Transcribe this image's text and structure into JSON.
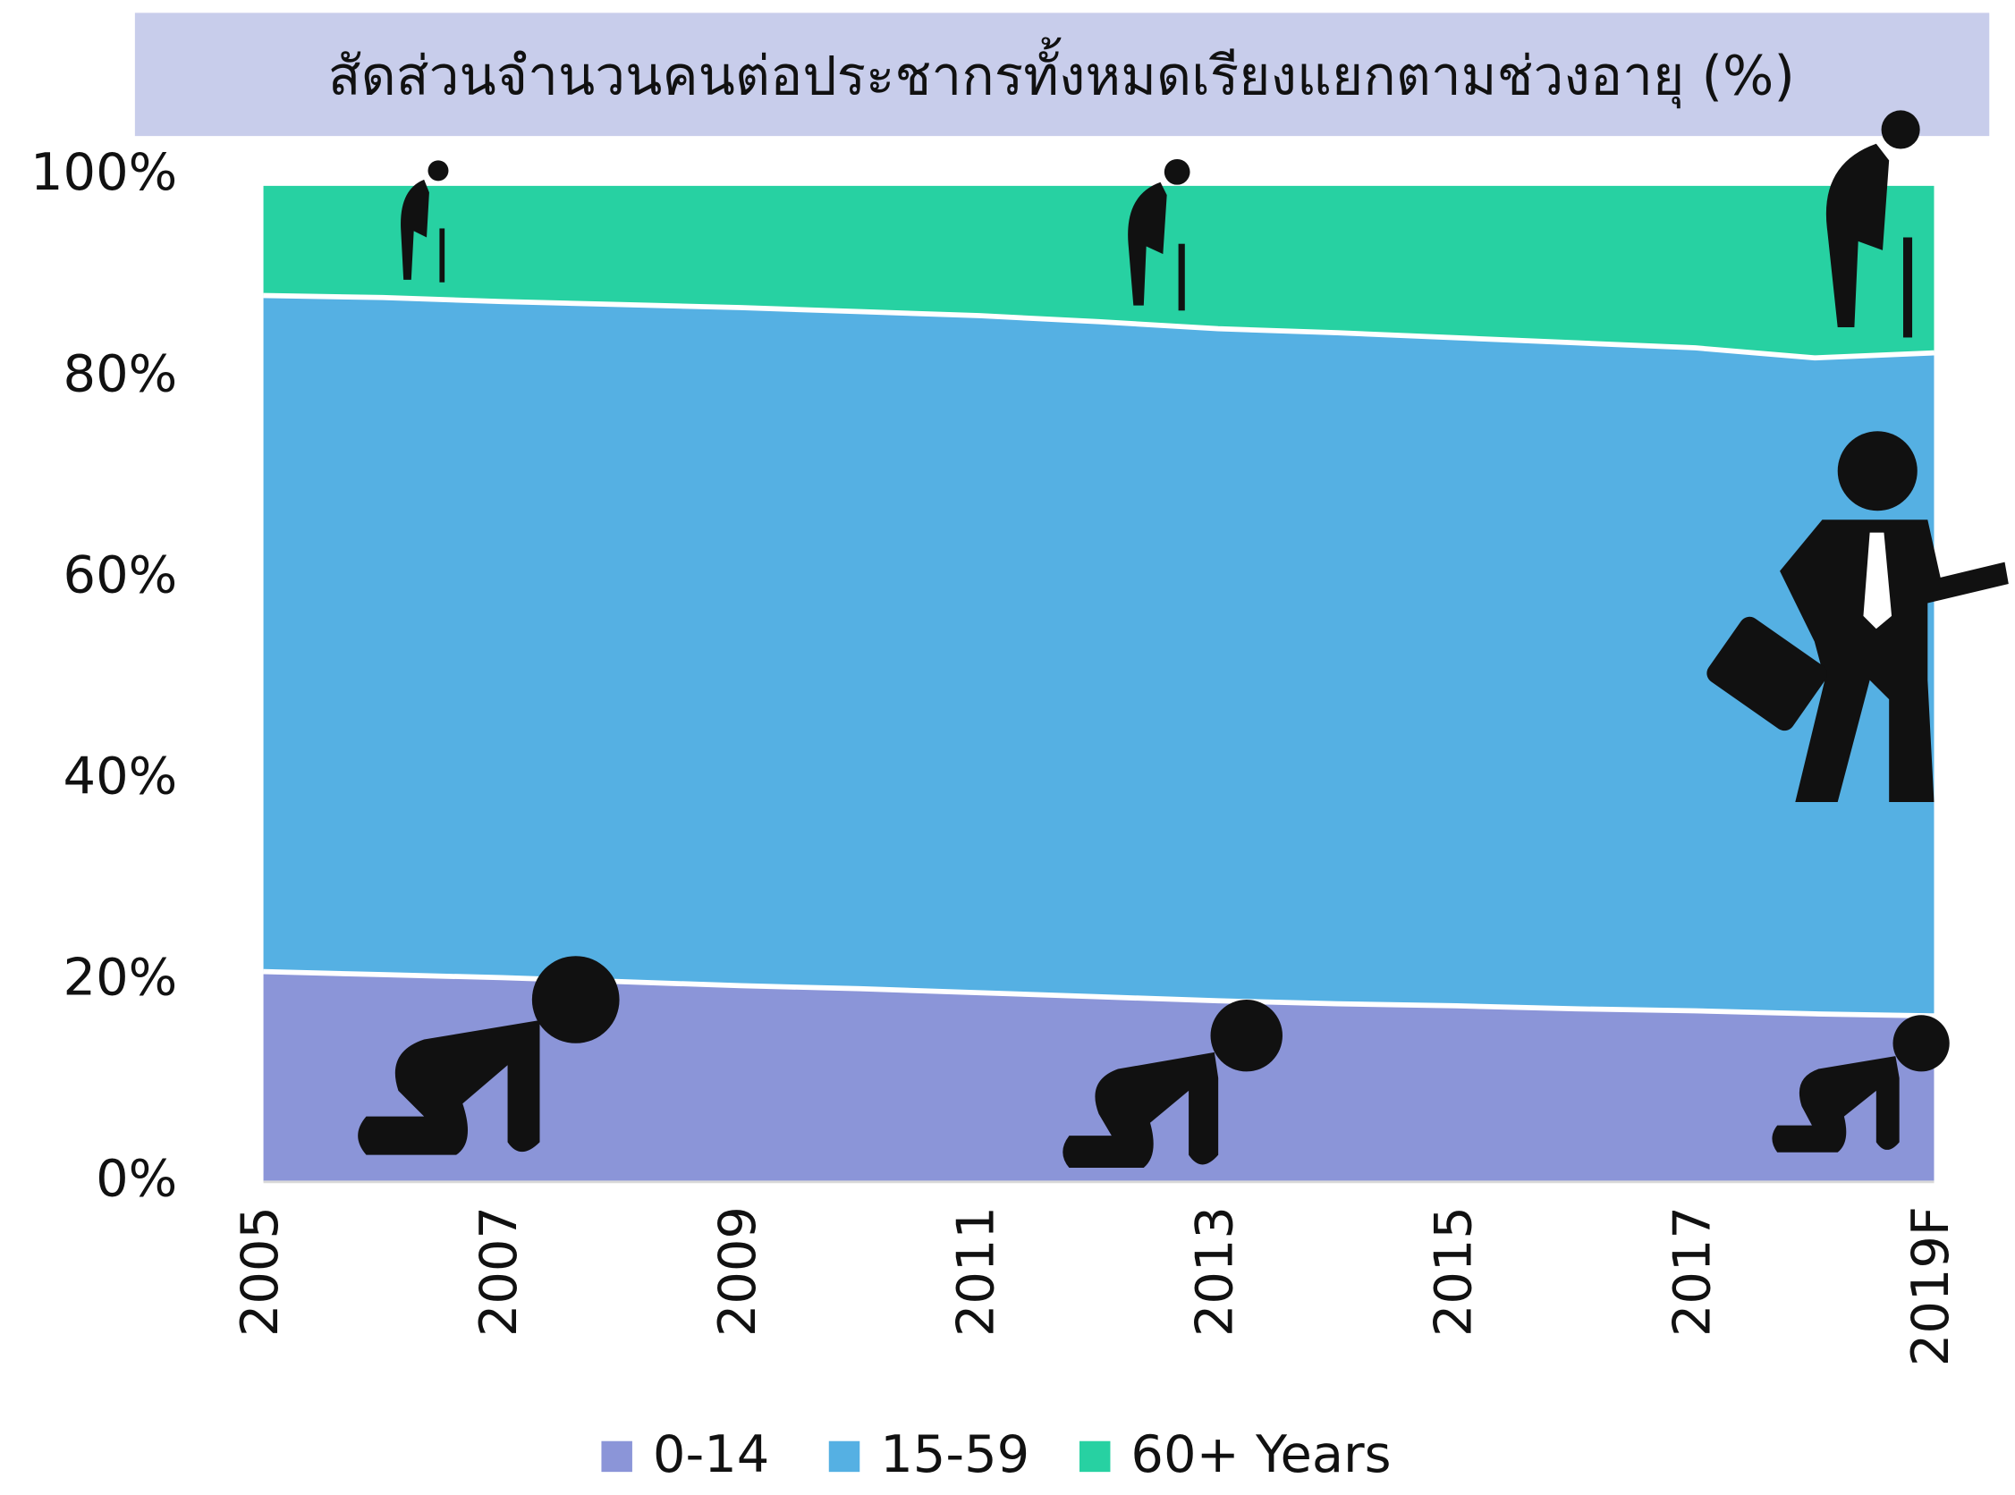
{
  "chart_data": {
    "type": "stacked_area",
    "title": "สัดส่วนจำนวนคนต่อประชากรทั้งหมดเรียงแยกตามช่วงอายุ (%)",
    "categories": [
      "2005",
      null,
      "2007",
      null,
      "2009",
      null,
      "2011",
      null,
      "2013",
      null,
      "2015",
      null,
      "2017",
      null,
      "2019F"
    ],
    "series": [
      {
        "name": "0-14",
        "color": "#8b95d8",
        "values": [
          20.9,
          20.6,
          20.3,
          19.9,
          19.5,
          19.2,
          18.8,
          18.4,
          18.0,
          17.7,
          17.5,
          17.2,
          17.0,
          16.7,
          16.5
        ]
      },
      {
        "name": "15-59",
        "color": "#55b0e3",
        "values": [
          67.2,
          67.3,
          67.2,
          67.3,
          67.4,
          67.3,
          67.3,
          67.1,
          66.8,
          66.7,
          66.4,
          66.2,
          65.9,
          65.2,
          65.9
        ]
      },
      {
        "name": "60+ Years",
        "color": "#27d1a2",
        "values": [
          10.9,
          11.1,
          11.5,
          11.8,
          12.1,
          12.5,
          12.9,
          13.5,
          14.2,
          14.6,
          15.1,
          15.6,
          16.1,
          17.1,
          16.6
        ]
      }
    ],
    "ylim": [
      0,
      100
    ],
    "yticks": [
      {
        "value": 0,
        "label": "0%"
      },
      {
        "value": 20,
        "label": "20%"
      },
      {
        "value": 40,
        "label": "40%"
      },
      {
        "value": 60,
        "label": "60%"
      },
      {
        "value": 80,
        "label": "80%"
      },
      {
        "value": 100,
        "label": "100%"
      }
    ],
    "grid": false
  }
}
